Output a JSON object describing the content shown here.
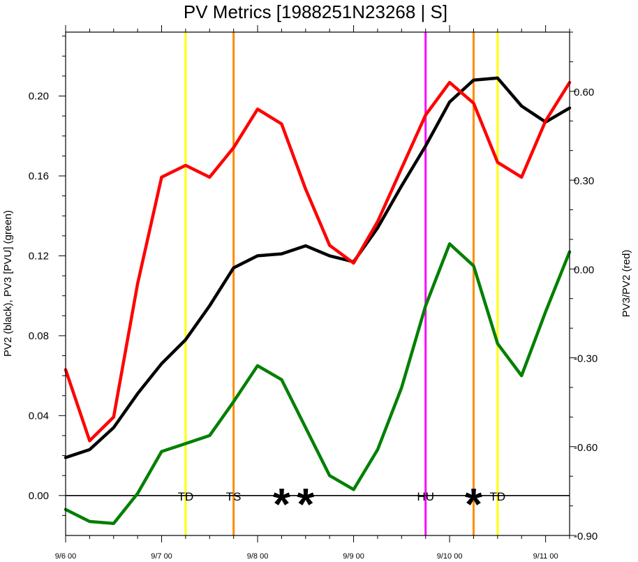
{
  "chart_data": {
    "type": "line",
    "title": "PV Metrics [1988251N23268 | S]",
    "ylabel_left": "PV2 (black), PV3 [PVU] (green)",
    "ylabel_right": "PV3/PV2 (red)",
    "x_ticks": [
      {
        "t": 0,
        "label": "9/6 00"
      },
      {
        "t": 24,
        "label": "9/7 00"
      },
      {
        "t": 48,
        "label": "9/8 00"
      },
      {
        "t": 72,
        "label": "9/9 00"
      },
      {
        "t": 96,
        "label": "9/10 00"
      },
      {
        "t": 120,
        "label": "9/11 00"
      }
    ],
    "xlim_hours": [
      0,
      126
    ],
    "y_left": {
      "lim": [
        -0.02,
        0.232
      ],
      "ticks": [
        "0.00",
        "0.04",
        "0.08",
        "0.12",
        "0.16",
        "0.20"
      ]
    },
    "y_right": {
      "lim": [
        -0.9,
        0.8
      ],
      "ticks": [
        "-0.90",
        "-0.60",
        "-0.30",
        "0.00",
        "0.30",
        "0.60"
      ]
    },
    "zero_line": 0,
    "series": [
      {
        "name": "PV2",
        "axis": "left",
        "color": "#000000",
        "x_hours": [
          0,
          6,
          12,
          18,
          24,
          30,
          36,
          42,
          48,
          54,
          60,
          66,
          72,
          78,
          84,
          90,
          96,
          102,
          108,
          114,
          120,
          126
        ],
        "values": [
          0.019,
          0.023,
          0.034,
          0.051,
          0.066,
          0.078,
          0.095,
          0.114,
          0.12,
          0.121,
          0.125,
          0.12,
          0.117,
          0.134,
          0.155,
          0.175,
          0.197,
          0.208,
          0.209,
          0.195,
          0.187,
          0.194
        ]
      },
      {
        "name": "PV3",
        "axis": "left",
        "color": "#008000",
        "x_hours": [
          0,
          6,
          12,
          18,
          24,
          30,
          36,
          42,
          48,
          54,
          60,
          66,
          72,
          78,
          84,
          90,
          96,
          102,
          108,
          114,
          120,
          126
        ],
        "values": [
          -0.007,
          -0.013,
          -0.014,
          0.001,
          0.022,
          0.026,
          0.03,
          0.047,
          0.065,
          0.058,
          0.034,
          0.01,
          0.003,
          0.023,
          0.054,
          0.095,
          0.126,
          0.115,
          0.076,
          0.06,
          0.092,
          0.122
        ]
      },
      {
        "name": "PV3/PV2",
        "axis": "right",
        "color": "#ff0000",
        "x_hours": [
          0,
          6,
          12,
          18,
          24,
          30,
          36,
          42,
          48,
          54,
          60,
          66,
          72,
          78,
          84,
          90,
          96,
          102,
          108,
          114,
          120,
          126
        ],
        "values": [
          -0.34,
          -0.58,
          -0.5,
          -0.05,
          0.31,
          0.35,
          0.31,
          0.41,
          0.54,
          0.49,
          0.27,
          0.08,
          0.02,
          0.16,
          0.34,
          0.52,
          0.63,
          0.56,
          0.36,
          0.31,
          0.5,
          0.63
        ]
      }
    ],
    "vertical_lines": [
      {
        "t": 30,
        "color": "#ffff00",
        "label": "TD"
      },
      {
        "t": 42,
        "color": "#ff8c00",
        "label": "TS"
      },
      {
        "t": 90,
        "color": "#ff00ff",
        "label": "HU"
      },
      {
        "t": 102,
        "color": "#ff8c00",
        "label": ""
      },
      {
        "t": 108,
        "color": "#ffff00",
        "label": "TD"
      }
    ],
    "star_markers": [
      {
        "t": 54,
        "label": "*"
      },
      {
        "t": 60,
        "label": "*"
      },
      {
        "t": 102,
        "label": "*"
      }
    ],
    "grid": false,
    "legend": "none"
  }
}
